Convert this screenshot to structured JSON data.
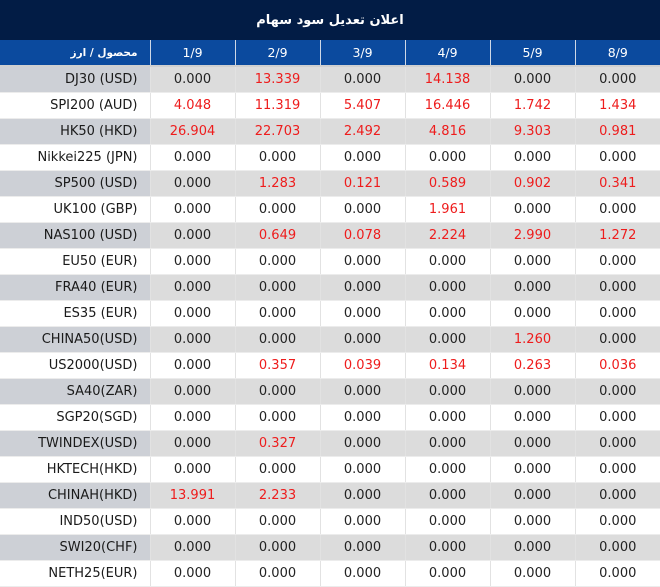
{
  "title": "اعلان تعدیل سود سهام",
  "header": {
    "product_label": "محصول / ارز",
    "dates": [
      "1/9",
      "2/9",
      "3/9",
      "4/9",
      "5/9",
      "8/9"
    ]
  },
  "colors": {
    "title_bg": "#021c45",
    "header_bg": "#0b4a9e",
    "highlight_text": "#ee1c1c",
    "zero_text": "#222222",
    "row_alt_bg": "#dcdcdc"
  },
  "rows": [
    {
      "product": "DJ30 (USD)",
      "values": [
        "0.000",
        "13.339",
        "0.000",
        "14.138",
        "0.000",
        "0.000"
      ]
    },
    {
      "product": "SPI200 (AUD)",
      "values": [
        "4.048",
        "11.319",
        "5.407",
        "16.446",
        "1.742",
        "1.434"
      ]
    },
    {
      "product": "HK50 (HKD)",
      "values": [
        "26.904",
        "22.703",
        "2.492",
        "4.816",
        "9.303",
        "0.981"
      ]
    },
    {
      "product": "Nikkei225 (JPN)",
      "values": [
        "0.000",
        "0.000",
        "0.000",
        "0.000",
        "0.000",
        "0.000"
      ]
    },
    {
      "product": "SP500 (USD)",
      "values": [
        "0.000",
        "1.283",
        "0.121",
        "0.589",
        "0.902",
        "0.341"
      ]
    },
    {
      "product": "UK100 (GBP)",
      "values": [
        "0.000",
        "0.000",
        "0.000",
        "1.961",
        "0.000",
        "0.000"
      ]
    },
    {
      "product": "NAS100 (USD)",
      "values": [
        "0.000",
        "0.649",
        "0.078",
        "2.224",
        "2.990",
        "1.272"
      ]
    },
    {
      "product": "EU50 (EUR)",
      "values": [
        "0.000",
        "0.000",
        "0.000",
        "0.000",
        "0.000",
        "0.000"
      ]
    },
    {
      "product": "FRA40 (EUR)",
      "values": [
        "0.000",
        "0.000",
        "0.000",
        "0.000",
        "0.000",
        "0.000"
      ]
    },
    {
      "product": "ES35 (EUR)",
      "values": [
        "0.000",
        "0.000",
        "0.000",
        "0.000",
        "0.000",
        "0.000"
      ]
    },
    {
      "product": "CHINA50(USD)",
      "values": [
        "0.000",
        "0.000",
        "0.000",
        "0.000",
        "1.260",
        "0.000"
      ]
    },
    {
      "product": "US2000(USD)",
      "values": [
        "0.000",
        "0.357",
        "0.039",
        "0.134",
        "0.263",
        "0.036"
      ]
    },
    {
      "product": "SA40(ZAR)",
      "values": [
        "0.000",
        "0.000",
        "0.000",
        "0.000",
        "0.000",
        "0.000"
      ]
    },
    {
      "product": "SGP20(SGD)",
      "values": [
        "0.000",
        "0.000",
        "0.000",
        "0.000",
        "0.000",
        "0.000"
      ]
    },
    {
      "product": "TWINDEX(USD)",
      "values": [
        "0.000",
        "0.327",
        "0.000",
        "0.000",
        "0.000",
        "0.000"
      ]
    },
    {
      "product": "HKTECH(HKD)",
      "values": [
        "0.000",
        "0.000",
        "0.000",
        "0.000",
        "0.000",
        "0.000"
      ]
    },
    {
      "product": "CHINAH(HKD)",
      "values": [
        "13.991",
        "2.233",
        "0.000",
        "0.000",
        "0.000",
        "0.000"
      ]
    },
    {
      "product": "IND50(USD)",
      "values": [
        "0.000",
        "0.000",
        "0.000",
        "0.000",
        "0.000",
        "0.000"
      ]
    },
    {
      "product": "SWI20(CHF)",
      "values": [
        "0.000",
        "0.000",
        "0.000",
        "0.000",
        "0.000",
        "0.000"
      ]
    },
    {
      "product": "NETH25(EUR)",
      "values": [
        "0.000",
        "0.000",
        "0.000",
        "0.000",
        "0.000",
        "0.000"
      ]
    }
  ]
}
